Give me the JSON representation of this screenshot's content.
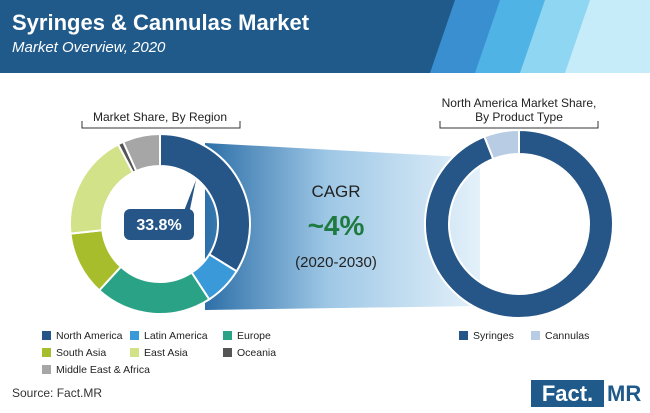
{
  "header": {
    "title": "Syringes & Cannulas Market",
    "subtitle": "Market Overview, 2020"
  },
  "cagr": {
    "label": "CAGR",
    "value": "~4%",
    "period": "(2020-2030)"
  },
  "chart_data": [
    {
      "type": "pie",
      "title": "Market Share, By Region",
      "donut": true,
      "highlight_label": "33.8%",
      "categories": [
        "North America",
        "Latin America",
        "Europe",
        "South Asia",
        "East Asia",
        "Oceania",
        "Middle East & Africa"
      ],
      "values": [
        33.8,
        7.0,
        21.0,
        11.5,
        19.0,
        1.0,
        6.7
      ],
      "colors": [
        "#255687",
        "#3a9ad9",
        "#2aa286",
        "#a8bd2b",
        "#d2e289",
        "#555555",
        "#a6a6a6"
      ],
      "legend_position": "bottom"
    },
    {
      "type": "pie",
      "title": "North America Market Share, By Product Type",
      "title_lines": [
        "North America Market Share,",
        "By Product Type"
      ],
      "donut": true,
      "categories": [
        "Syringes",
        "Cannulas"
      ],
      "values": [
        94,
        6
      ],
      "colors": [
        "#255687",
        "#b8cce4"
      ],
      "legend_position": "bottom"
    }
  ],
  "footer": {
    "source": "Source: Fact.MR",
    "logo_left": "Fact.",
    "logo_right": "MR"
  }
}
